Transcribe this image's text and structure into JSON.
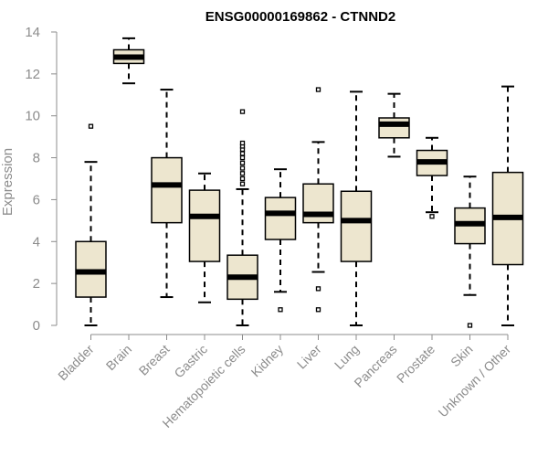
{
  "chart_data": {
    "type": "boxplot",
    "title": "ENSG00000169862 - CTNND2",
    "ylabel": "Expression",
    "xlabel": "",
    "ylim": [
      0,
      14
    ],
    "yticks": [
      0,
      2,
      4,
      6,
      8,
      10,
      12,
      14
    ],
    "grid": false,
    "legend": "none",
    "box_fill": "#ede6cf",
    "box_stroke": "#000000",
    "categories": [
      "Bladder",
      "Brain",
      "Breast",
      "Gastric",
      "Hematopoietic cells",
      "Kidney",
      "Liver",
      "Lung",
      "Pancreas",
      "Prostate",
      "Skin",
      "Unknown / Other"
    ],
    "boxes": [
      {
        "min": 0.0,
        "q1": 1.35,
        "median": 2.55,
        "q3": 4.0,
        "max": 7.8,
        "outliers": [
          9.5
        ]
      },
      {
        "min": 11.55,
        "q1": 12.5,
        "median": 12.8,
        "q3": 13.15,
        "max": 13.7,
        "outliers": []
      },
      {
        "min": 1.35,
        "q1": 4.9,
        "median": 6.7,
        "q3": 8.0,
        "max": 11.25,
        "outliers": []
      },
      {
        "min": 1.1,
        "q1": 3.05,
        "median": 5.2,
        "q3": 6.45,
        "max": 7.25,
        "outliers": []
      },
      {
        "min": 0.0,
        "q1": 1.25,
        "median": 2.3,
        "q3": 3.35,
        "max": 6.5,
        "outliers": [
          6.75,
          7.0,
          7.25,
          7.5,
          7.75,
          8.0,
          8.2,
          8.4,
          8.55,
          8.7,
          10.2
        ]
      },
      {
        "min": 1.6,
        "q1": 4.1,
        "median": 5.35,
        "q3": 6.1,
        "max": 7.45,
        "outliers": [
          0.75
        ]
      },
      {
        "min": 2.55,
        "q1": 4.9,
        "median": 5.3,
        "q3": 6.75,
        "max": 8.75,
        "outliers": [
          0.75,
          1.75,
          11.25
        ]
      },
      {
        "min": 0.0,
        "q1": 3.05,
        "median": 5.0,
        "q3": 6.4,
        "max": 11.15,
        "outliers": []
      },
      {
        "min": 8.05,
        "q1": 8.95,
        "median": 9.6,
        "q3": 9.9,
        "max": 11.05,
        "outliers": []
      },
      {
        "min": 5.4,
        "q1": 7.15,
        "median": 7.8,
        "q3": 8.35,
        "max": 8.95,
        "outliers": [
          5.2
        ]
      },
      {
        "min": 1.45,
        "q1": 3.9,
        "median": 4.85,
        "q3": 5.6,
        "max": 7.1,
        "outliers": [
          0.0
        ]
      },
      {
        "min": 0.0,
        "q1": 2.9,
        "median": 5.15,
        "q3": 7.3,
        "max": 11.4,
        "outliers": []
      }
    ]
  }
}
